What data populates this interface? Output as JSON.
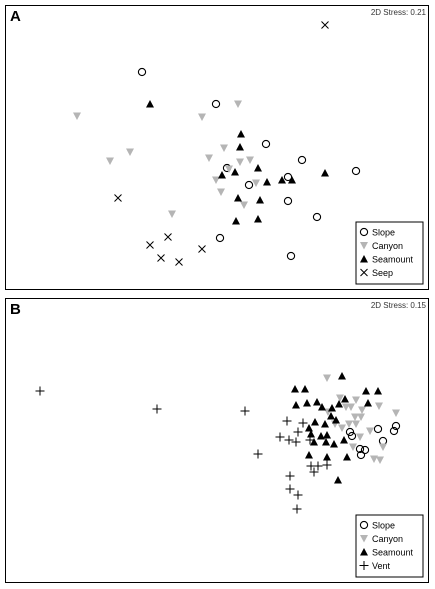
{
  "chart_data": [
    {
      "type": "scatter",
      "panel_label": "A",
      "stress_label": "2D Stress: 0.21",
      "legend": [
        {
          "name": "Slope",
          "marker": "circle"
        },
        {
          "name": "Canyon",
          "marker": "triangle-down"
        },
        {
          "name": "Seamount",
          "marker": "triangle-up"
        },
        {
          "name": "Seep",
          "marker": "x"
        }
      ],
      "series": [
        {
          "name": "Slope",
          "marker": "circle",
          "color": "#000000",
          "points": [
            [
              142,
              72
            ],
            [
              216,
              104
            ],
            [
              266,
              144
            ],
            [
              302,
              160
            ],
            [
              356,
              171
            ],
            [
              288,
              177
            ],
            [
              249,
              185
            ],
            [
              288,
              201
            ],
            [
              317,
              217
            ],
            [
              220,
              238
            ],
            [
              291,
              256
            ],
            [
              227,
              168
            ]
          ]
        },
        {
          "name": "Canyon",
          "marker": "triangle-down",
          "color": "#b5b5b5",
          "points": [
            [
              77,
              116
            ],
            [
              130,
              152
            ],
            [
              110,
              161
            ],
            [
              172,
              214
            ],
            [
              202,
              117
            ],
            [
              238,
              104
            ],
            [
              224,
              148
            ],
            [
              209,
              158
            ],
            [
              229,
              169
            ],
            [
              221,
              192
            ],
            [
              244,
              205
            ],
            [
              256,
              183
            ],
            [
              216,
              180
            ],
            [
              240,
              162
            ],
            [
              250,
              160
            ]
          ]
        },
        {
          "name": "Seamount",
          "marker": "triangle-up",
          "color": "#000000",
          "points": [
            [
              150,
              104
            ],
            [
              241,
              134
            ],
            [
              240,
              147
            ],
            [
              235,
              172
            ],
            [
              258,
              168
            ],
            [
              267,
              182
            ],
            [
              282,
              180
            ],
            [
              292,
              180
            ],
            [
              325,
              173
            ],
            [
              222,
              175
            ],
            [
              238,
              198
            ],
            [
              260,
              200
            ],
            [
              258,
              219
            ],
            [
              236,
              221
            ]
          ]
        },
        {
          "name": "Seep",
          "marker": "x",
          "color": "#000000",
          "points": [
            [
              325,
              25
            ],
            [
              118,
              198
            ],
            [
              150,
              245
            ],
            [
              168,
              237
            ],
            [
              161,
              258
            ],
            [
              179,
              262
            ],
            [
              202,
              249
            ]
          ]
        }
      ]
    },
    {
      "type": "scatter",
      "panel_label": "B",
      "stress_label": "2D Stress: 0.15",
      "legend": [
        {
          "name": "Slope",
          "marker": "circle"
        },
        {
          "name": "Canyon",
          "marker": "triangle-down"
        },
        {
          "name": "Seamount",
          "marker": "triangle-up"
        },
        {
          "name": "Vent",
          "marker": "plus"
        }
      ],
      "series": [
        {
          "name": "Slope",
          "marker": "circle",
          "color": "#000000",
          "points": [
            [
              396,
              426
            ],
            [
              394,
              431
            ],
            [
              378,
              429
            ],
            [
              383,
              441
            ],
            [
              350,
              432
            ],
            [
              352,
              436
            ],
            [
              360,
              449
            ],
            [
              365,
              450
            ],
            [
              361,
              455
            ]
          ]
        },
        {
          "name": "Canyon",
          "marker": "triangle-down",
          "color": "#b5b5b5",
          "points": [
            [
              327,
              378
            ],
            [
              340,
              398
            ],
            [
              346,
              407
            ],
            [
              356,
              400
            ],
            [
              362,
              410
            ],
            [
              351,
              407
            ],
            [
              355,
              417
            ],
            [
              361,
              417
            ],
            [
              349,
              424
            ],
            [
              356,
              424
            ],
            [
              360,
              437
            ],
            [
              370,
              431
            ],
            [
              379,
              406
            ],
            [
              396,
              413
            ],
            [
              383,
              447
            ],
            [
              374,
              459
            ],
            [
              380,
              460
            ],
            [
              353,
              447
            ],
            [
              335,
              424
            ],
            [
              342,
              428
            ],
            [
              328,
              412
            ]
          ]
        },
        {
          "name": "Seamount",
          "marker": "triangle-up",
          "color": "#000000",
          "points": [
            [
              342,
              376
            ],
            [
              295,
              389
            ],
            [
              305,
              389
            ],
            [
              296,
              405
            ],
            [
              307,
              403
            ],
            [
              317,
              402
            ],
            [
              322,
              407
            ],
            [
              332,
              408
            ],
            [
              339,
              404
            ],
            [
              345,
              399
            ],
            [
              366,
              391
            ],
            [
              378,
              391
            ],
            [
              368,
              403
            ],
            [
              331,
              416
            ],
            [
              315,
              422
            ],
            [
              309,
              428
            ],
            [
              311,
              434
            ],
            [
              321,
              436
            ],
            [
              327,
              435
            ],
            [
              314,
              442
            ],
            [
              326,
              442
            ],
            [
              334,
              444
            ],
            [
              344,
              440
            ],
            [
              309,
              455
            ],
            [
              327,
              457
            ],
            [
              338,
              480
            ],
            [
              347,
              457
            ],
            [
              336,
              420
            ],
            [
              325,
              424
            ]
          ]
        },
        {
          "name": "Vent",
          "marker": "plus",
          "color": "#000000",
          "points": [
            [
              40,
              391
            ],
            [
              157,
              409
            ],
            [
              245,
              411
            ],
            [
              258,
              454
            ],
            [
              280,
              437
            ],
            [
              289,
              440
            ],
            [
              287,
              421
            ],
            [
              298,
              432
            ],
            [
              303,
              423
            ],
            [
              296,
              442
            ],
            [
              310,
              440
            ],
            [
              311,
              466
            ],
            [
              318,
              466
            ],
            [
              327,
              465
            ],
            [
              314,
              472
            ],
            [
              290,
              476
            ],
            [
              290,
              489
            ],
            [
              298,
              495
            ],
            [
              297,
              509
            ]
          ]
        }
      ]
    }
  ]
}
